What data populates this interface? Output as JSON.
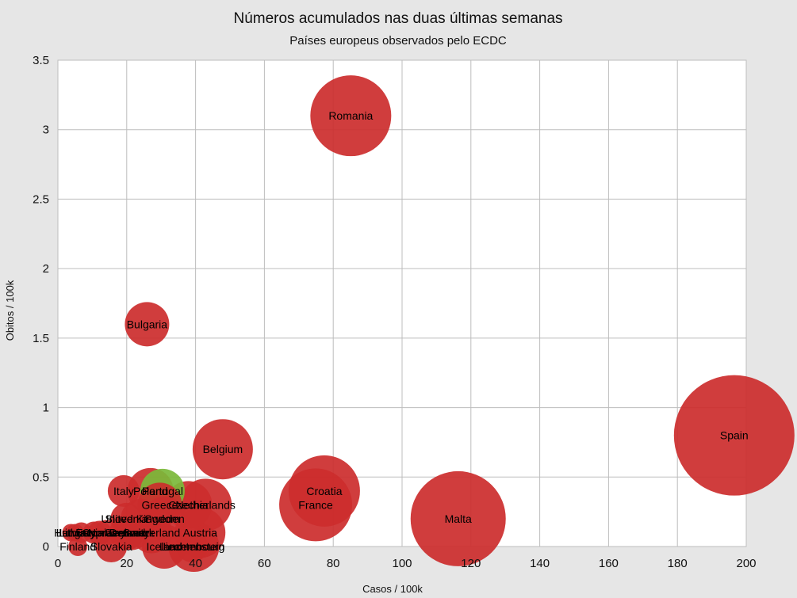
{
  "chart_data": {
    "type": "scatter",
    "subtype": "bubble",
    "title": "Números acumulados nas duas últimas semanas",
    "subtitle": "Países europeus observados pelo ECDC",
    "xlabel": "Casos / 100k",
    "ylabel": "Obitos / 100k",
    "xlim": [
      0,
      200
    ],
    "ylim": [
      0,
      3.5
    ],
    "x_ticks": [
      0,
      20,
      40,
      60,
      80,
      100,
      120,
      140,
      160,
      180,
      200
    ],
    "y_ticks": [
      0,
      0.5,
      1,
      1.5,
      2,
      2.5,
      3,
      3.5
    ],
    "y_tick_labels": [
      "0",
      "0.5",
      "1",
      "1.5",
      "2",
      "2.5",
      "3",
      "3.5"
    ],
    "grid": true,
    "colors": {
      "default": "#cc2c2c",
      "highlight": "#7bb83a",
      "background": "#e6e6e6",
      "plot_background": "#ffffff"
    },
    "points": [
      {
        "name": "Spain",
        "x": 196.5,
        "y": 0.8,
        "r": 76,
        "color": "#cc2c2c"
      },
      {
        "name": "Malta",
        "x": 116.3,
        "y": 0.2,
        "r": 60,
        "color": "#cc2c2c"
      },
      {
        "name": "Romania",
        "x": 85.1,
        "y": 3.1,
        "r": 51,
        "color": "#cc2c2c"
      },
      {
        "name": "Croatia",
        "x": 77.4,
        "y": 0.4,
        "r": 45,
        "color": "#cc2c2c"
      },
      {
        "name": "France",
        "x": 74.9,
        "y": 0.3,
        "r": 46,
        "color": "#cc2c2c"
      },
      {
        "name": "Belgium",
        "x": 47.9,
        "y": 0.7,
        "r": 38,
        "color": "#cc2c2c"
      },
      {
        "name": "Netherlands",
        "x": 42.9,
        "y": 0.3,
        "r": 33,
        "color": "#cc2c2c"
      },
      {
        "name": "Czechia",
        "x": 37.9,
        "y": 0.3,
        "r": 30,
        "color": "#cc2c2c"
      },
      {
        "name": "Luxembourg",
        "x": 39.5,
        "y": 0.0,
        "r": 32,
        "color": "#cc2c2c"
      },
      {
        "name": "Austria",
        "x": 41.3,
        "y": 0.1,
        "r": 32,
        "color": "#cc2c2c"
      },
      {
        "name": "Bulgaria",
        "x": 25.9,
        "y": 1.6,
        "r": 28,
        "color": "#cc2c2c"
      },
      {
        "name": "Poland",
        "x": 26.9,
        "y": 0.4,
        "r": 29,
        "color": "#cc2c2c"
      },
      {
        "name": "Portugal",
        "x": 30.4,
        "y": 0.4,
        "r": 28,
        "color": "#7bb83a"
      },
      {
        "name": "Greece",
        "x": 29.6,
        "y": 0.3,
        "r": 28,
        "color": "#cc2c2c"
      },
      {
        "name": "Sweden",
        "x": 31.0,
        "y": 0.2,
        "r": 28,
        "color": "#cc2c2c"
      },
      {
        "name": "Iceland",
        "x": 30.9,
        "y": 0.0,
        "r": 28,
        "color": "#cc2c2c"
      },
      {
        "name": "Liechtenstein",
        "x": 39.0,
        "y": 0.0,
        "r": 20,
        "color": "#cc2c2c"
      },
      {
        "name": "Switzerland",
        "x": 27.2,
        "y": 0.1,
        "r": 26,
        "color": "#cc2c2c"
      },
      {
        "name": "United Kingdom",
        "x": 24.0,
        "y": 0.2,
        "r": 25,
        "color": "#cc2c2c"
      },
      {
        "name": "Slovenia",
        "x": 19.9,
        "y": 0.2,
        "r": 20,
        "color": "#cc2c2c"
      },
      {
        "name": "Italy",
        "x": 19.1,
        "y": 0.4,
        "r": 20,
        "color": "#cc2c2c"
      },
      {
        "name": "Germany",
        "x": 20.0,
        "y": 0.1,
        "r": 22,
        "color": "#cc2c2c"
      },
      {
        "name": "Denmark",
        "x": 21.5,
        "y": 0.1,
        "r": 22,
        "color": "#cc2c2c"
      },
      {
        "name": "Ireland",
        "x": 20.5,
        "y": 0.1,
        "r": 20,
        "color": "#cc2c2c"
      },
      {
        "name": "Slovakia",
        "x": 15.5,
        "y": 0.0,
        "r": 20,
        "color": "#cc2c2c"
      },
      {
        "name": "Norway",
        "x": 14.2,
        "y": 0.1,
        "r": 16,
        "color": "#cc2c2c"
      },
      {
        "name": "Cyprus",
        "x": 12.1,
        "y": 0.1,
        "r": 15,
        "color": "#cc2c2c"
      },
      {
        "name": "Estonia",
        "x": 10.5,
        "y": 0.1,
        "r": 14,
        "color": "#cc2c2c"
      },
      {
        "name": "Lithuania",
        "x": 6.8,
        "y": 0.1,
        "r": 13,
        "color": "#cc2c2c"
      },
      {
        "name": "Hungary",
        "x": 5.0,
        "y": 0.1,
        "r": 11,
        "color": "#cc2c2c"
      },
      {
        "name": "Latvia",
        "x": 3.8,
        "y": 0.1,
        "r": 11,
        "color": "#cc2c2c"
      },
      {
        "name": "Finland",
        "x": 5.8,
        "y": 0.0,
        "r": 12,
        "color": "#cc2c2c"
      }
    ]
  }
}
